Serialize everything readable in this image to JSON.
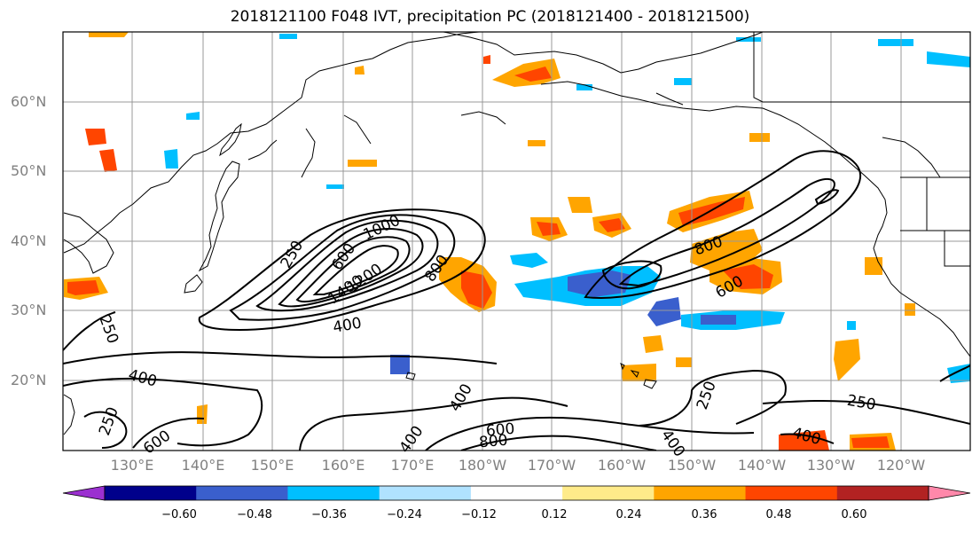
{
  "title": "2018121100 F048 IVT, precipitation PC (2018121400 - 2018121500)",
  "lat_labels": [
    "60°N",
    "50°N",
    "40°N",
    "30°N",
    "20°N"
  ],
  "lon_labels": [
    "130°E",
    "140°E",
    "150°E",
    "160°E",
    "170°E",
    "180°W",
    "170°W",
    "160°W",
    "150°W",
    "140°W",
    "130°W",
    "120°W"
  ],
  "contour_labels": [
    "250",
    "600",
    "1000",
    "1400",
    "1200",
    "800",
    "400",
    "250",
    "400",
    "250",
    "400",
    "600",
    "800",
    "600",
    "400",
    "250",
    "400",
    "250",
    "400",
    "800",
    "600"
  ],
  "colorbar": {
    "colors": [
      "#9b30d0",
      "#00008b",
      "#3a5fcd",
      "#00bfff",
      "#b0e2ff",
      "#ffffff",
      "#ffeb8a",
      "#ffa500",
      "#ff4500",
      "#b22222",
      "#ff88aa"
    ],
    "tick_labels": [
      "−0.60",
      "−0.48",
      "−0.36",
      "−0.24",
      "−0.12",
      "0.12",
      "0.24",
      "0.36",
      "0.48",
      "0.60"
    ]
  },
  "legend_colors": {
    "contour": "#000000",
    "grid": "#999999",
    "coast": "#000000"
  }
}
